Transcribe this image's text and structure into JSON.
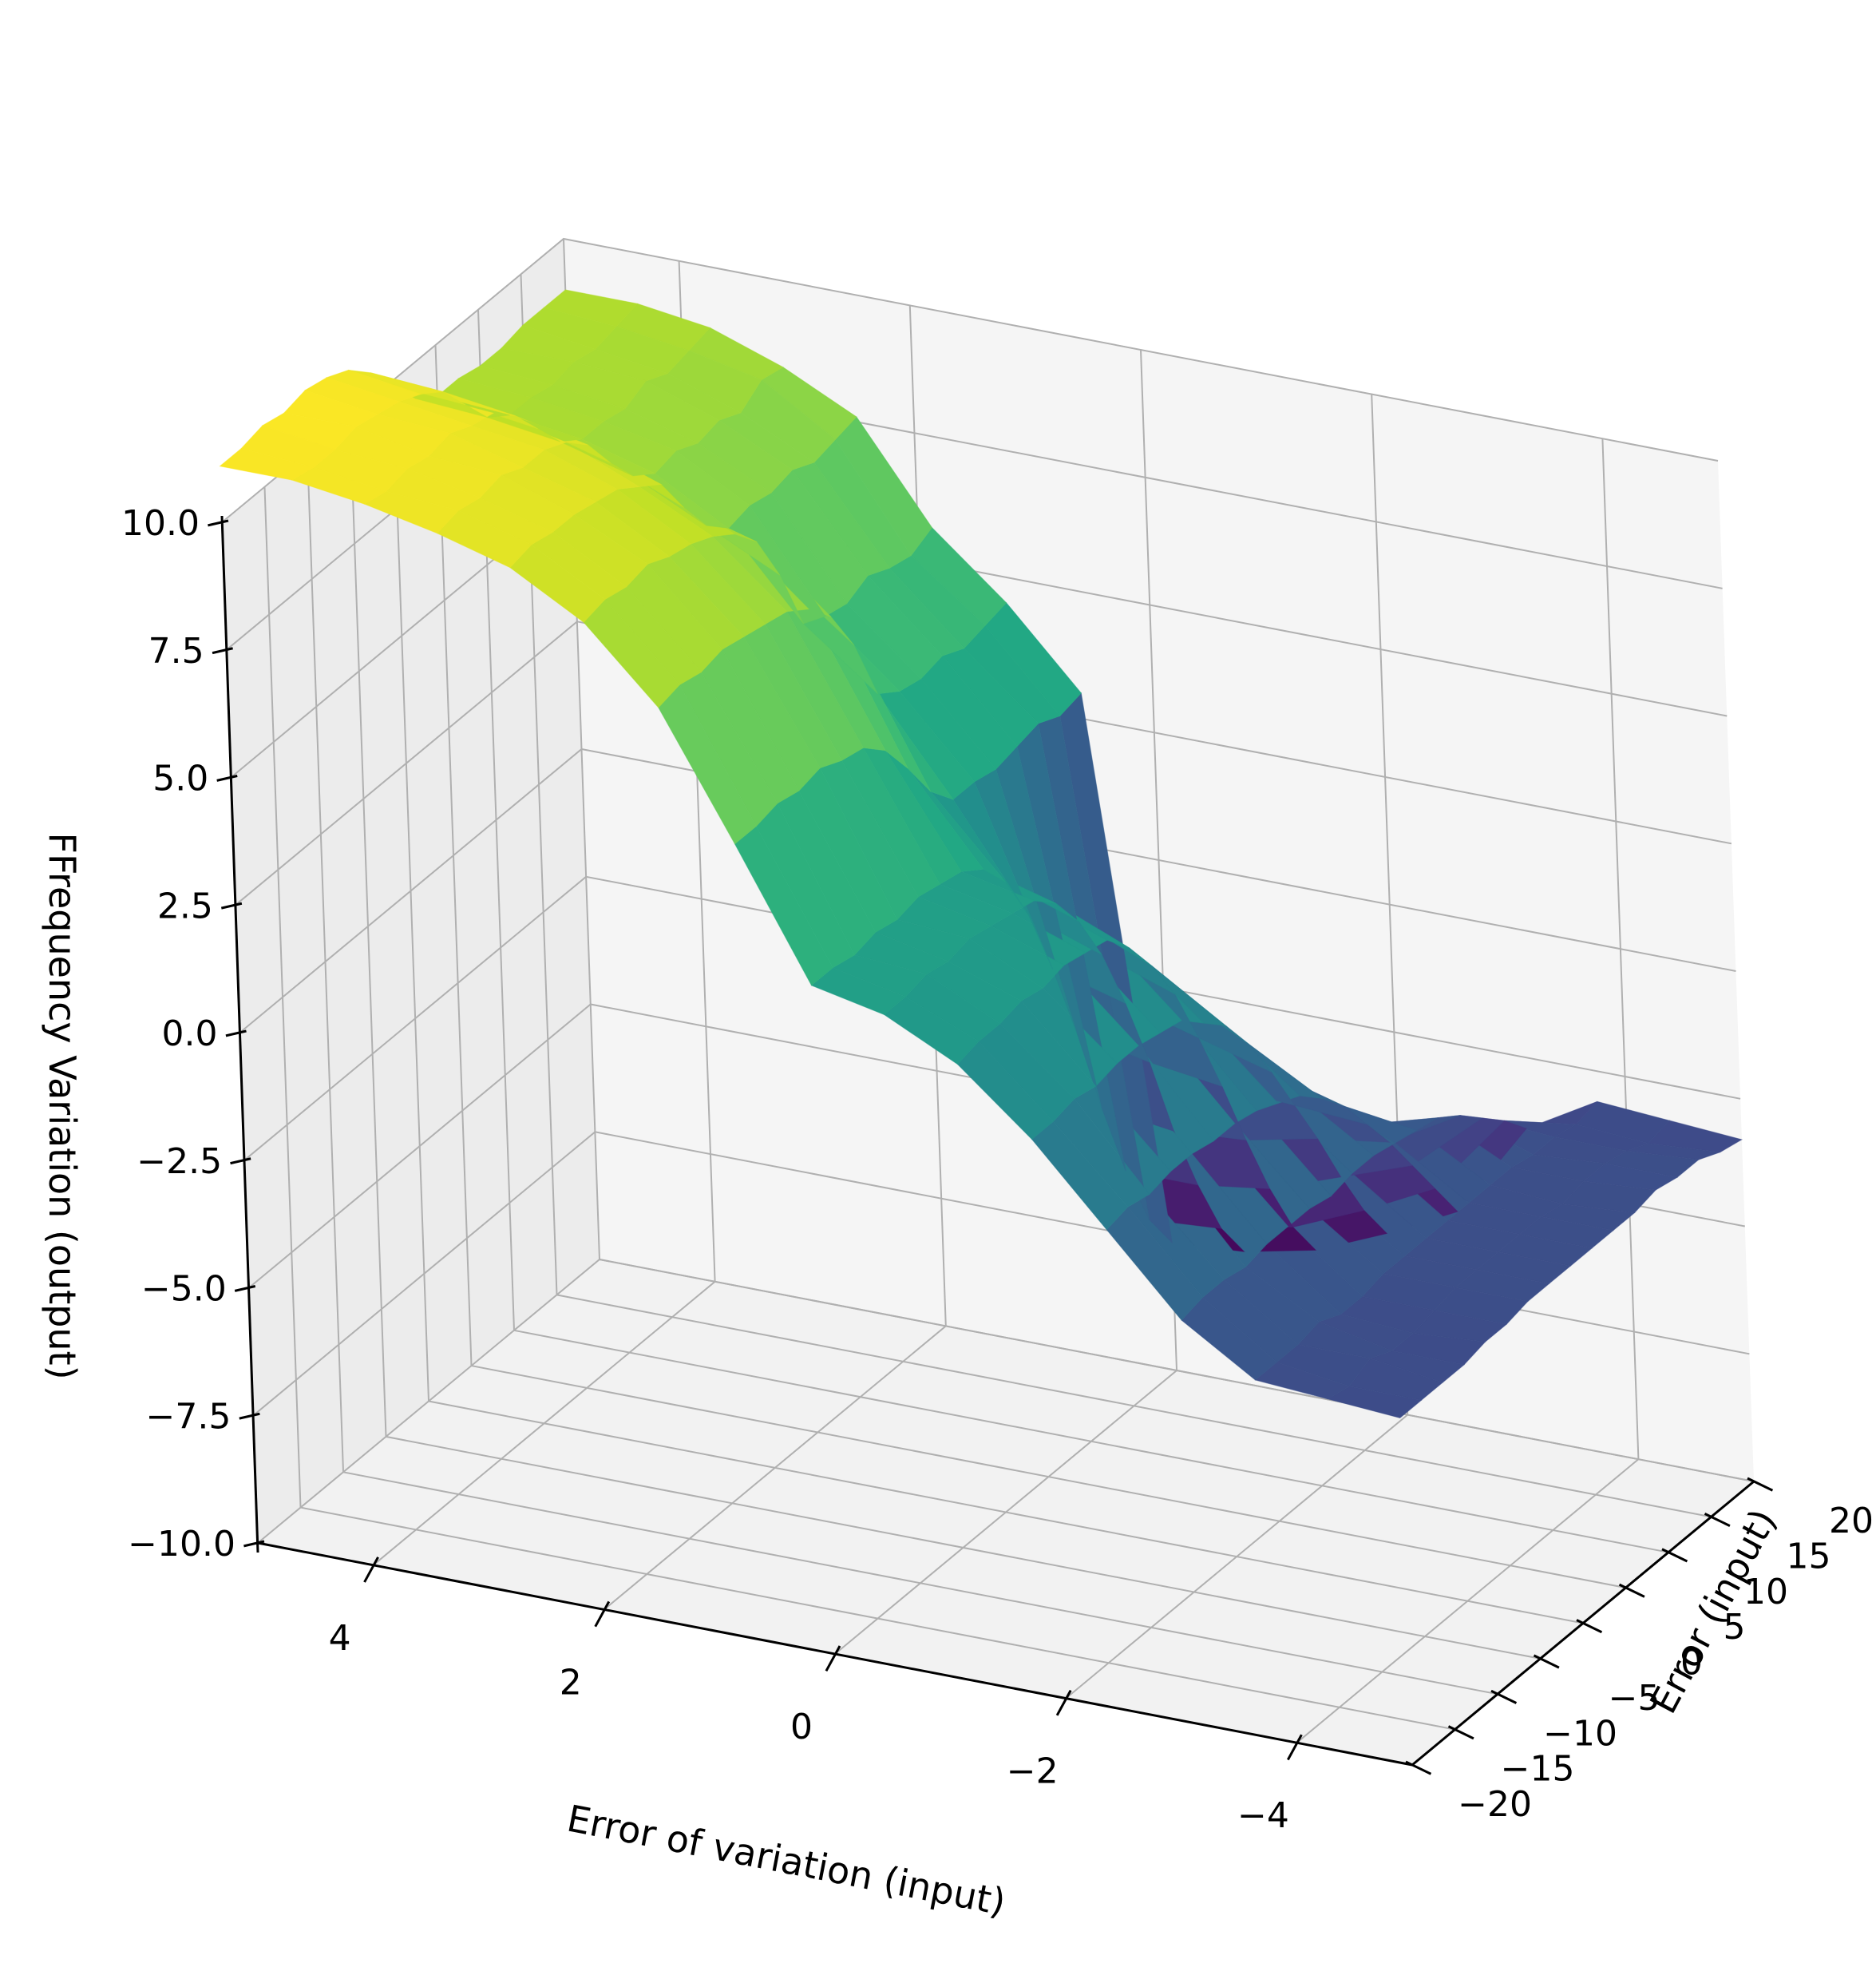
{
  "chart_data": {
    "type": "surface",
    "title": "",
    "xlabel": "Error (input)",
    "ylabel": "Error of variation (input)",
    "zlabel": "FFrequency Variation (output)",
    "x_ticks": [
      -20,
      -15,
      -10,
      -5,
      0,
      5,
      10,
      15,
      20
    ],
    "x_tick_labels": [
      "−20",
      "−15",
      "−10",
      "−5",
      "0",
      "5",
      "10",
      "15",
      "20"
    ],
    "y_ticks": [
      4,
      2,
      0,
      -2,
      -4
    ],
    "y_tick_labels": [
      "4",
      "2",
      "0",
      "−2",
      "−4"
    ],
    "z_ticks": [
      -10,
      -7.5,
      -5,
      -2.5,
      0,
      2.5,
      5,
      7.5,
      10
    ],
    "z_tick_labels": [
      "−10.0",
      "−7.5",
      "−5.0",
      "−2.5",
      "0.0",
      "2.5",
      "5.0",
      "7.5",
      "10.0"
    ],
    "xlim": [
      -20,
      20
    ],
    "ylim": [
      -5,
      5
    ],
    "zlim": [
      -10,
      10
    ],
    "colormap": "viridis",
    "grid": true,
    "x": [
      -20,
      -17.5,
      -15,
      -12.5,
      -10,
      -7.5,
      -5,
      -2.5,
      0,
      2.5,
      5,
      7.5,
      10,
      12.5,
      15,
      17.5,
      20
    ],
    "y": [
      -5,
      -4.375,
      -3.75,
      -3.125,
      -2.5,
      -1.875,
      -1.25,
      -0.625,
      0,
      0.625,
      1.25,
      1.875,
      2.5,
      3.125,
      3.75,
      4.375,
      5
    ],
    "z": [
      [
        -3.2,
        -3.2,
        -3.2,
        -3.2,
        -3.1,
        -3.1,
        -3.0,
        -3.0,
        -3.0,
        -3.0,
        -3.0,
        -3.0,
        -2.9,
        -3.0,
        -3.0,
        -3.2,
        -3.3
      ],
      [
        -3.1,
        -3.2,
        -3.0,
        -3.2,
        -3.2,
        -3.1,
        -3.0,
        -3.0,
        -3.0,
        -3.0,
        -3.0,
        -3.1,
        -3.0,
        -3.0,
        -3.1,
        -3.3,
        -3.2
      ],
      [
        -3.0,
        -3.0,
        -3.0,
        -2.9,
        -3.1,
        -3.1,
        -3.0,
        -3.0,
        -3.0,
        -3.0,
        -3.0,
        -3.0,
        -3.0,
        -3.1,
        -3.1,
        -3.2,
        -3.1
      ],
      [
        -2.1,
        -2.0,
        -2.0,
        -2.1,
        -2.0,
        -2.0,
        -2.0,
        -2.1,
        -2.0,
        -2.0,
        -2.1,
        -2.2,
        -2.3,
        -2.6,
        -3.0,
        -3.4,
        -3.9
      ],
      [
        -0.6,
        -0.5,
        -0.6,
        -0.5,
        -0.5,
        -0.6,
        -0.6,
        -0.7,
        -0.9,
        -1.1,
        -1.5,
        -2.0,
        -2.7,
        -3.4,
        -4.2,
        -5.0,
        -5.8
      ],
      [
        0.9,
        0.9,
        1.0,
        0.9,
        1.0,
        1.0,
        0.9,
        0.8,
        0.4,
        0.0,
        -0.7,
        -1.6,
        -2.6,
        -3.6,
        -4.7,
        -5.7,
        -6.5
      ],
      [
        2.1,
        2.2,
        2.2,
        2.3,
        2.2,
        2.3,
        2.2,
        2.1,
        1.6,
        0.9,
        0.0,
        -1.2,
        -2.5,
        -3.9,
        -5.2,
        -6.3,
        -7.1
      ],
      [
        2.8,
        2.8,
        2.9,
        2.8,
        2.9,
        2.8,
        2.7,
        2.6,
        2.2,
        1.5,
        0.5,
        -0.8,
        -2.3,
        -4.0,
        -5.4,
        -6.6,
        -7.4
      ],
      [
        3.1,
        3.1,
        3.0,
        3.1,
        3.0,
        3.1,
        3.0,
        2.9,
        2.6,
        2.0,
        1.0,
        -0.4,
        -2.0,
        -3.8,
        -5.4,
        -6.7,
        -7.5
      ],
      [
        5.6,
        5.6,
        5.7,
        5.6,
        5.7,
        5.5,
        5.4,
        5.0,
        4.3,
        3.5,
        3.0,
        3.0,
        2.9,
        3.0,
        3.1,
        2.9,
        3.0
      ],
      [
        8.0,
        8.1,
        8.0,
        8.1,
        8.0,
        7.9,
        7.8,
        7.5,
        7.0,
        6.1,
        4.8,
        4.5,
        4.4,
        4.5,
        4.3,
        4.4,
        4.5
      ],
      [
        9.4,
        9.5,
        9.4,
        9.5,
        9.3,
        9.2,
        9.0,
        8.7,
        8.2,
        7.2,
        5.9,
        5.7,
        5.6,
        5.8,
        5.6,
        5.5,
        5.7
      ],
      [
        10.2,
        10.3,
        10.2,
        10.2,
        10.1,
        10.0,
        9.7,
        9.4,
        8.6,
        7.9,
        7.5,
        7.6,
        7.5,
        7.6,
        7.4,
        7.5,
        7.6
      ],
      [
        10.6,
        10.7,
        10.6,
        10.7,
        10.5,
        10.5,
        10.3,
        9.9,
        9.2,
        8.6,
        8.3,
        8.4,
        8.2,
        8.3,
        8.1,
        8.4,
        8.3
      ],
      [
        10.9,
        10.8,
        10.9,
        10.8,
        10.9,
        10.7,
        10.6,
        10.2,
        9.6,
        9.0,
        8.7,
        8.7,
        8.6,
        8.8,
        8.6,
        8.7,
        8.8
      ],
      [
        11.1,
        11.0,
        11.0,
        11.1,
        11.0,
        10.9,
        10.7,
        10.4,
        9.8,
        9.2,
        8.9,
        8.9,
        8.8,
        8.9,
        8.8,
        8.9,
        9.0
      ],
      [
        11.1,
        11.1,
        11.2,
        11.1,
        11.2,
        11.1,
        10.9,
        10.5,
        9.9,
        9.3,
        9.0,
        9.0,
        8.9,
        8.9,
        9.0,
        9.0,
        9.0
      ]
    ]
  }
}
